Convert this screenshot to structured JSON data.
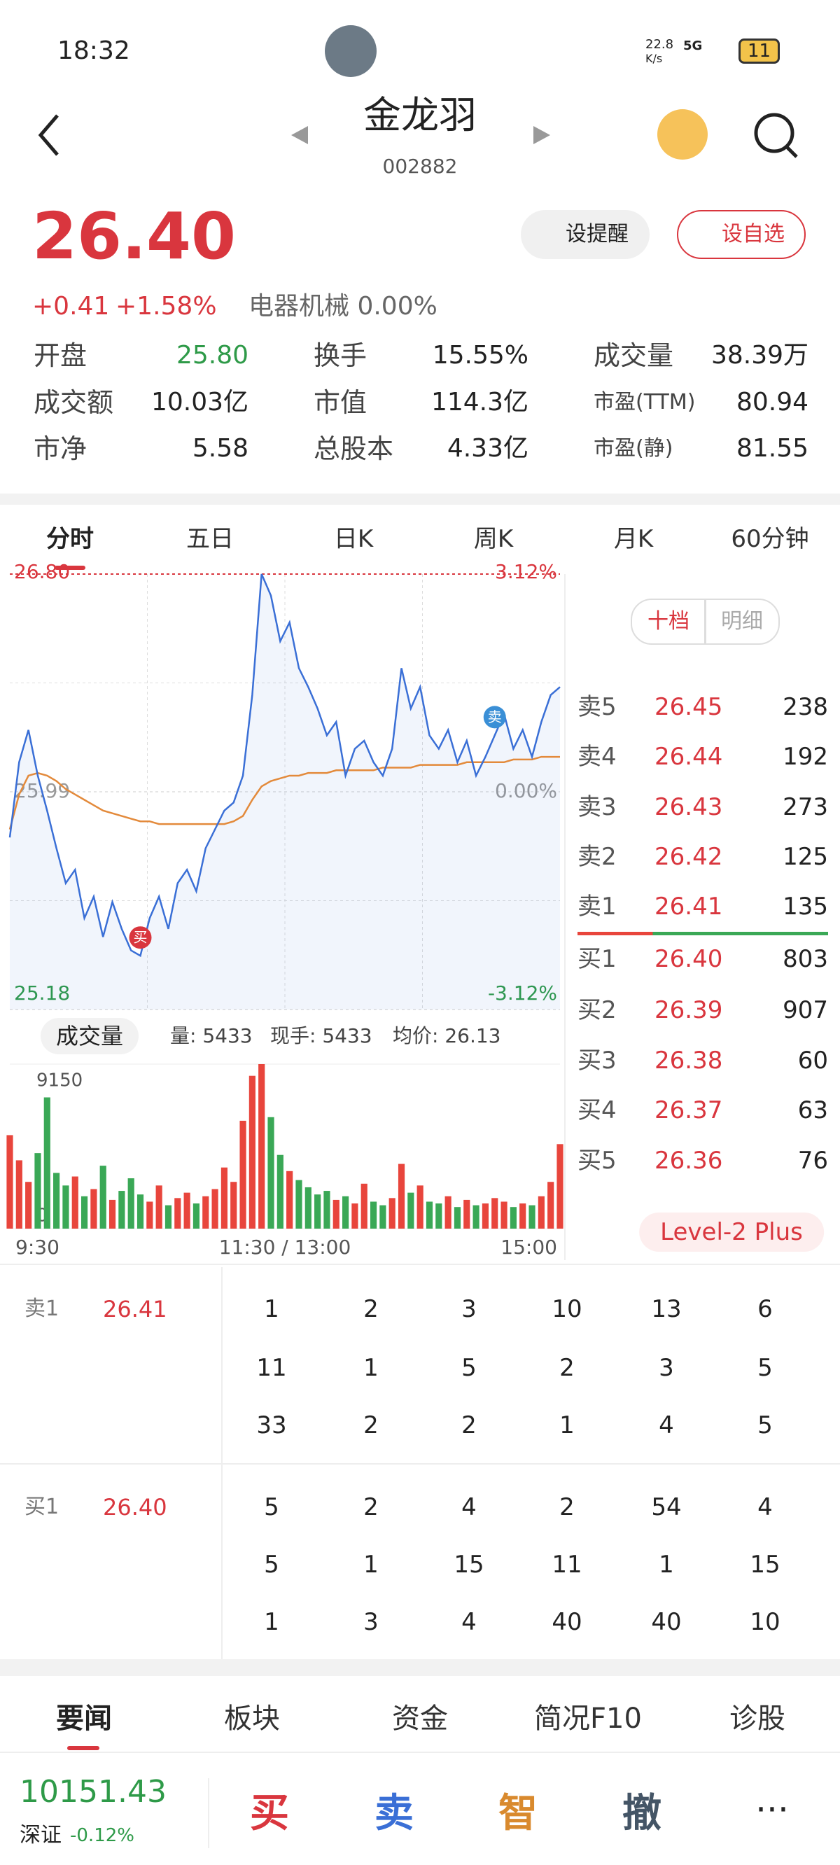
{
  "status": {
    "time": "18:32",
    "speed": "22.8",
    "speed_unit": "K/s",
    "network": "5G",
    "battery": "11"
  },
  "header": {
    "name": "金龙羽",
    "code": "002882"
  },
  "quote": {
    "price": "26.40",
    "change": "+0.41",
    "pct": "+1.58%",
    "sector": "电器机械 0.00%",
    "alert": "设提醒",
    "watch": "设自选"
  },
  "stats": [
    [
      "开盘",
      "25.80"
    ],
    [
      "换手",
      "15.55%"
    ],
    [
      "成交量",
      "38.39万"
    ],
    [
      "成交额",
      "10.03亿"
    ],
    [
      "市值",
      "114.3亿"
    ],
    [
      "市盈(TTM)",
      "80.94"
    ],
    [
      "市净",
      "5.58"
    ],
    [
      "总股本",
      "4.33亿"
    ],
    [
      "市盈(静)",
      "81.55"
    ]
  ],
  "tabs": [
    "分时",
    "五日",
    "日K",
    "周K",
    "月K",
    "60分钟"
  ],
  "intraday": {
    "yticks": [
      {
        "value": 25.18,
        "label": "25.18"
      },
      {
        "value": 25.99,
        "label": "25.99"
      },
      {
        "value": 26.8,
        "label": "26.80"
      }
    ],
    "pct_labels": [
      "-3.12%",
      "0.00%",
      "3.12%"
    ],
    "ylim": [
      25.18,
      26.8
    ],
    "price": [
      25.82,
      26.1,
      26.22,
      26.05,
      25.92,
      25.78,
      25.65,
      25.7,
      25.52,
      25.6,
      25.45,
      25.58,
      25.48,
      25.4,
      25.38,
      25.52,
      25.6,
      25.48,
      25.65,
      25.7,
      25.62,
      25.78,
      25.85,
      25.92,
      25.95,
      26.05,
      26.35,
      26.8,
      26.72,
      26.55,
      26.62,
      26.45,
      26.38,
      26.3,
      26.2,
      26.25,
      26.05,
      26.15,
      26.18,
      26.1,
      26.05,
      26.15,
      26.45,
      26.3,
      26.38,
      26.2,
      26.15,
      26.22,
      26.1,
      26.18,
      26.05,
      26.12,
      26.2,
      26.28,
      26.15,
      26.22,
      26.12,
      26.25,
      26.35,
      26.38
    ],
    "avg": [
      25.85,
      25.98,
      26.05,
      26.06,
      26.05,
      26.03,
      26.0,
      25.98,
      25.96,
      25.94,
      25.92,
      25.91,
      25.9,
      25.89,
      25.88,
      25.88,
      25.87,
      25.87,
      25.87,
      25.87,
      25.87,
      25.87,
      25.87,
      25.87,
      25.88,
      25.9,
      25.96,
      26.01,
      26.03,
      26.04,
      26.05,
      26.05,
      26.06,
      26.06,
      26.06,
      26.07,
      26.07,
      26.07,
      26.07,
      26.07,
      26.08,
      26.08,
      26.08,
      26.08,
      26.09,
      26.09,
      26.09,
      26.09,
      26.09,
      26.1,
      26.1,
      26.1,
      26.1,
      26.1,
      26.11,
      26.11,
      26.11,
      26.12,
      26.12,
      26.12
    ],
    "price_color": "#3a6fd6",
    "avg_color": "#e38a3b",
    "buy_marker": "买",
    "sell_marker": "卖"
  },
  "volume": {
    "label": "成交量",
    "qty": "量: 5433",
    "hand": "现手: 5433",
    "avgp": "均价: 26.13",
    "vlim": [
      0,
      9150
    ],
    "vticks": [
      0,
      9150
    ],
    "values": [
      5200,
      3800,
      2600,
      4200,
      7300,
      3100,
      2400,
      2900,
      1800,
      2200,
      3500,
      1600,
      2100,
      2800,
      1900,
      1500,
      2400,
      1300,
      1700,
      2000,
      1400,
      1800,
      2200,
      3400,
      2600,
      6000,
      8500,
      9150,
      6200,
      4100,
      3200,
      2700,
      2300,
      1900,
      2100,
      1600,
      1800,
      1400,
      2500,
      1500,
      1300,
      1700,
      3600,
      2000,
      2400,
      1500,
      1400,
      1800,
      1200,
      1600,
      1300,
      1400,
      1700,
      1500,
      1200,
      1400,
      1300,
      1800,
      2600,
      4700
    ],
    "times": [
      "9:30",
      "11:30 / 13:00",
      "15:00"
    ],
    "up_color": "#e8453c",
    "down_color": "#3aa856"
  },
  "book": {
    "modes": [
      "十档",
      "明细"
    ],
    "asks": [
      [
        "卖5",
        "26.45",
        "238"
      ],
      [
        "卖4",
        "26.44",
        "192"
      ],
      [
        "卖3",
        "26.43",
        "273"
      ],
      [
        "卖2",
        "26.42",
        "125"
      ],
      [
        "卖1",
        "26.41",
        "135"
      ]
    ],
    "bids": [
      [
        "买1",
        "26.40",
        "803"
      ],
      [
        "买2",
        "26.39",
        "907"
      ],
      [
        "买3",
        "26.38",
        "60"
      ],
      [
        "买4",
        "26.37",
        "63"
      ],
      [
        "买5",
        "26.36",
        "76"
      ]
    ],
    "level2": "Level-2 Plus"
  },
  "queue": [
    {
      "label": "卖1",
      "price": "26.41",
      "rows": [
        [
          "1",
          "2",
          "3",
          "10",
          "13",
          "6"
        ],
        [
          "11",
          "1",
          "5",
          "2",
          "3",
          "5"
        ],
        [
          "33",
          "2",
          "2",
          "1",
          "4",
          "5"
        ]
      ]
    },
    {
      "label": "买1",
      "price": "26.40",
      "rows": [
        [
          "5",
          "2",
          "4",
          "2",
          "54",
          "4"
        ],
        [
          "5",
          "1",
          "15",
          "11",
          "1",
          "15"
        ],
        [
          "1",
          "3",
          "4",
          "40",
          "40",
          "10"
        ]
      ]
    }
  ],
  "news_tabs": [
    "要闻",
    "板块",
    "资金",
    "简况F10",
    "诊股"
  ],
  "footer": {
    "index": "10151.43",
    "market": "深证",
    "pct": "-0.12%",
    "actions": [
      "买",
      "卖",
      "智",
      "撤"
    ]
  }
}
